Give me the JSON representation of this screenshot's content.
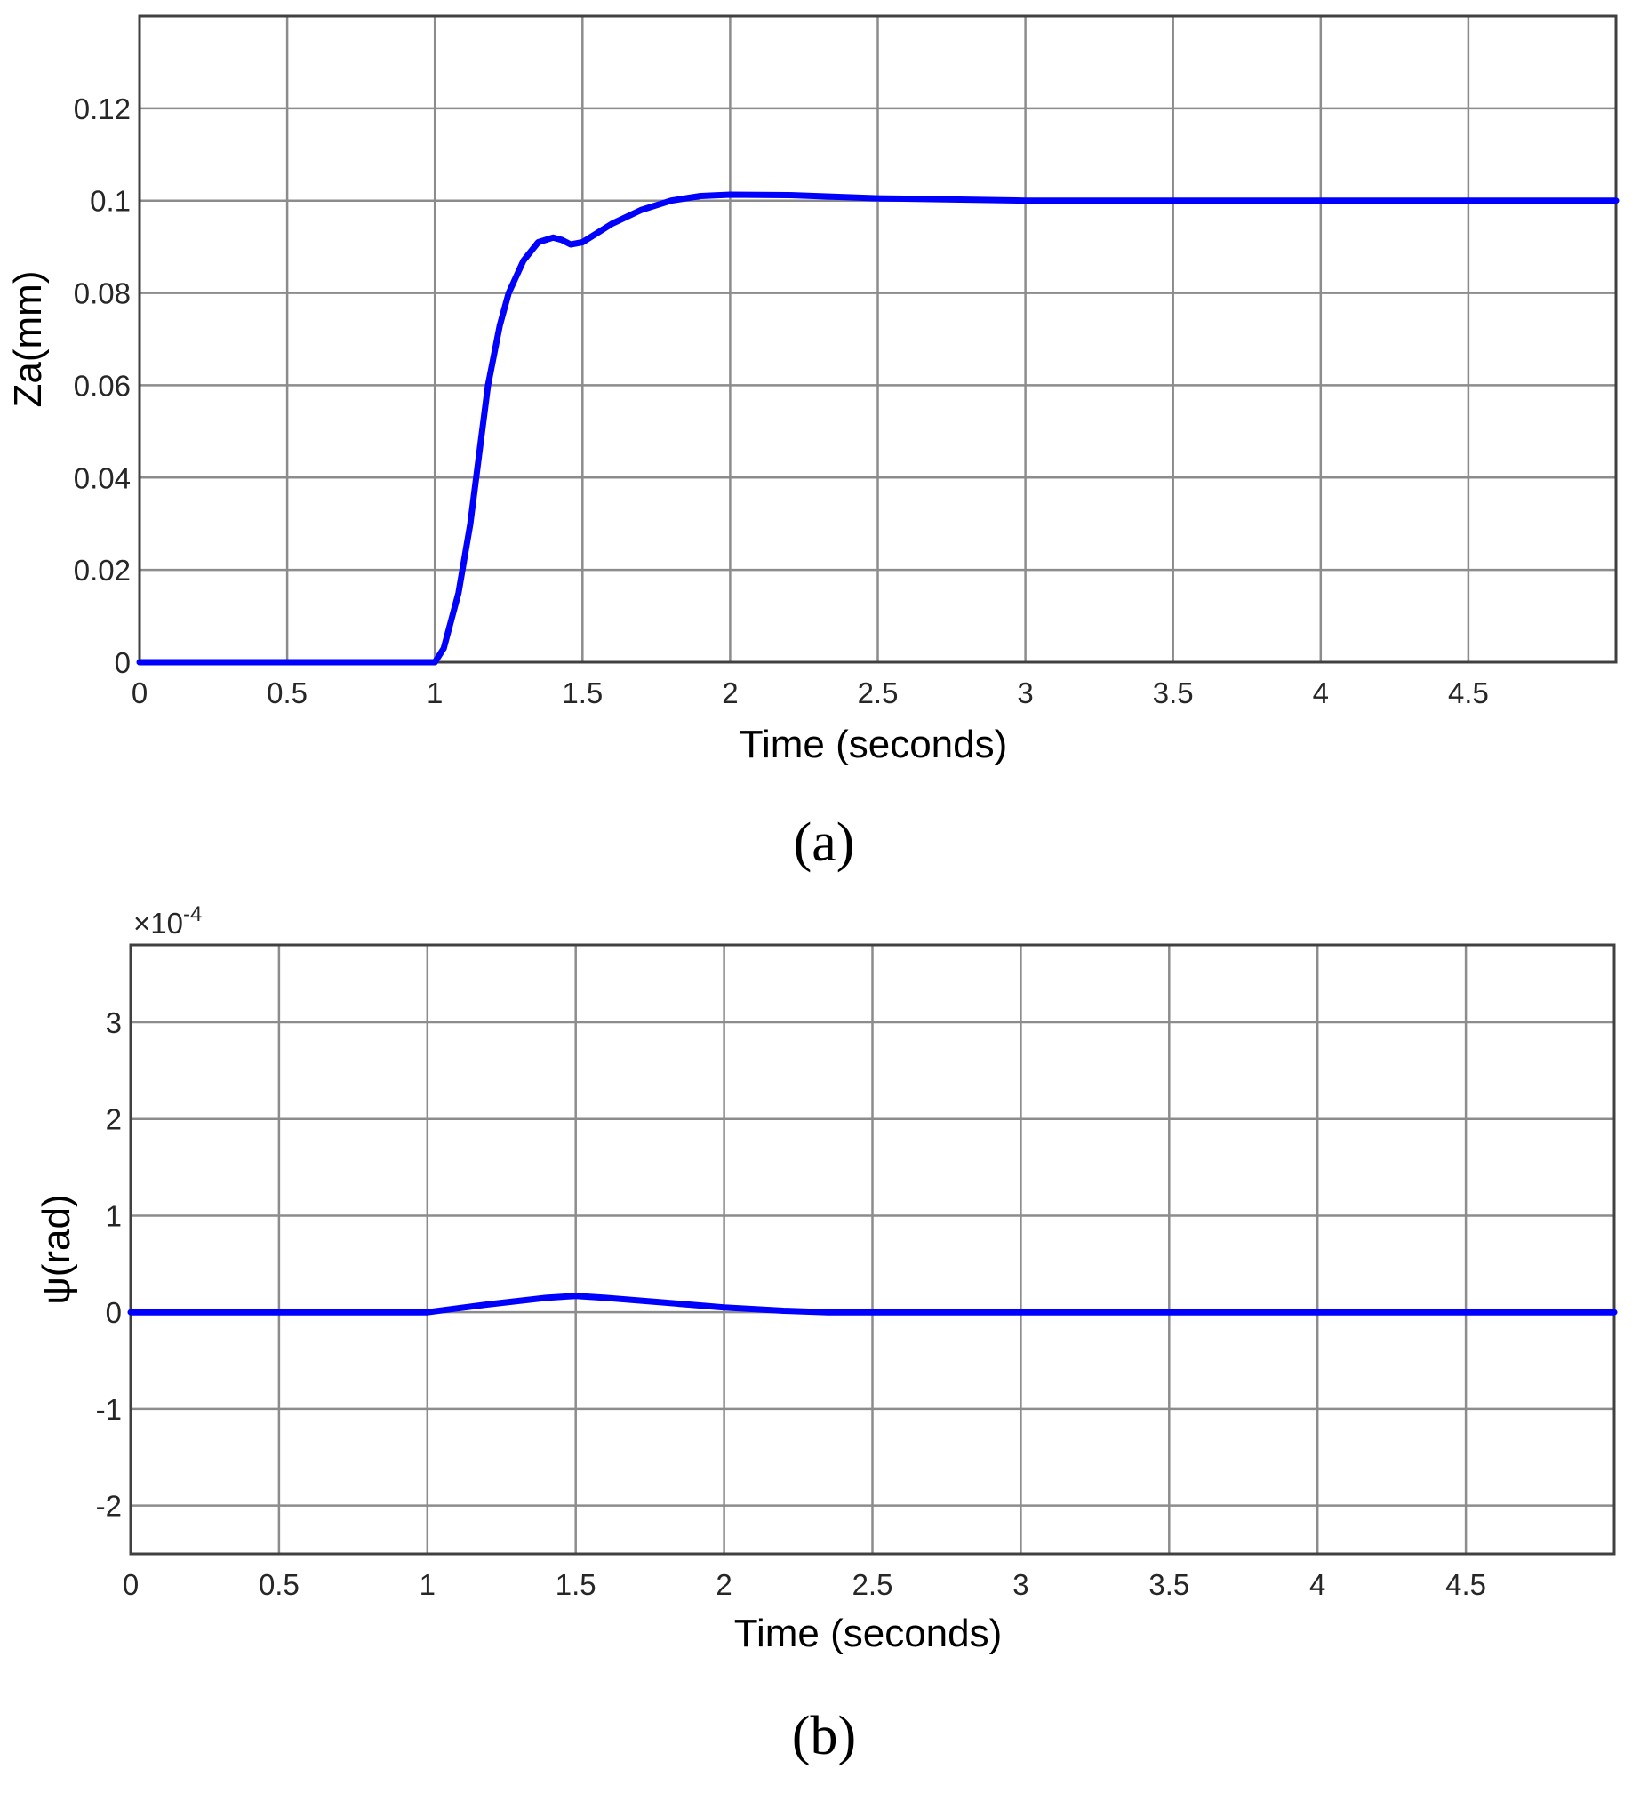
{
  "chart_data": [
    {
      "type": "line",
      "caption": "(a)",
      "xlabel": "Time (seconds)",
      "ylabel": "Za(mm)",
      "xlim": [
        0,
        5
      ],
      "ylim": [
        0,
        0.14
      ],
      "xticks": [
        0,
        0.5,
        1,
        1.5,
        2,
        2.5,
        3,
        3.5,
        4,
        4.5
      ],
      "xtick_labels": [
        "0",
        "0.5",
        "1",
        "1.5",
        "2",
        "2.5",
        "3",
        "3.5",
        "4",
        "4.5"
      ],
      "yticks": [
        0,
        0.02,
        0.04,
        0.06,
        0.08,
        0.1,
        0.12
      ],
      "ytick_labels": [
        "0",
        "0.02",
        "0.04",
        "0.06",
        "0.08",
        "0.1",
        "0.12"
      ],
      "grid": true,
      "series_color": "#0000ff",
      "series": [
        {
          "x": [
            0,
            1.0,
            1.03,
            1.08,
            1.12,
            1.15,
            1.18,
            1.22,
            1.25,
            1.3,
            1.35,
            1.4,
            1.43,
            1.46,
            1.5,
            1.55,
            1.6,
            1.7,
            1.8,
            1.9,
            2.0,
            2.2,
            2.5,
            3.0,
            4.0,
            5.0
          ],
          "y": [
            0,
            0,
            0.003,
            0.015,
            0.03,
            0.045,
            0.06,
            0.073,
            0.08,
            0.087,
            0.091,
            0.092,
            0.0915,
            0.0905,
            0.091,
            0.093,
            0.095,
            0.098,
            0.1,
            0.101,
            0.1013,
            0.1012,
            0.1005,
            0.1,
            0.1,
            0.1
          ]
        }
      ]
    },
    {
      "type": "line",
      "caption": "(b)",
      "xlabel": "Time (seconds)",
      "ylabel": "ψ(rad)",
      "multiplier": "×10",
      "multiplier_exp": "-4",
      "xlim": [
        0,
        5
      ],
      "ylim": [
        -2.5,
        3.8
      ],
      "xticks": [
        0,
        0.5,
        1,
        1.5,
        2,
        2.5,
        3,
        3.5,
        4,
        4.5
      ],
      "xtick_labels": [
        "0",
        "0.5",
        "1",
        "1.5",
        "2",
        "2.5",
        "3",
        "3.5",
        "4",
        "4.5"
      ],
      "yticks": [
        -2,
        -1,
        0,
        1,
        2,
        3
      ],
      "ytick_labels": [
        "-2",
        "-1",
        "0",
        "1",
        "2",
        "3"
      ],
      "grid": true,
      "series_color": "#0000ff",
      "series": [
        {
          "x": [
            0,
            1.0,
            1.2,
            1.4,
            1.5,
            1.6,
            1.8,
            2.0,
            2.2,
            2.35,
            2.5,
            3.0,
            5.0
          ],
          "y": [
            0,
            0,
            0.08,
            0.15,
            0.17,
            0.15,
            0.1,
            0.05,
            0.015,
            0.0,
            0.0,
            0.0,
            0.0
          ]
        }
      ]
    }
  ]
}
